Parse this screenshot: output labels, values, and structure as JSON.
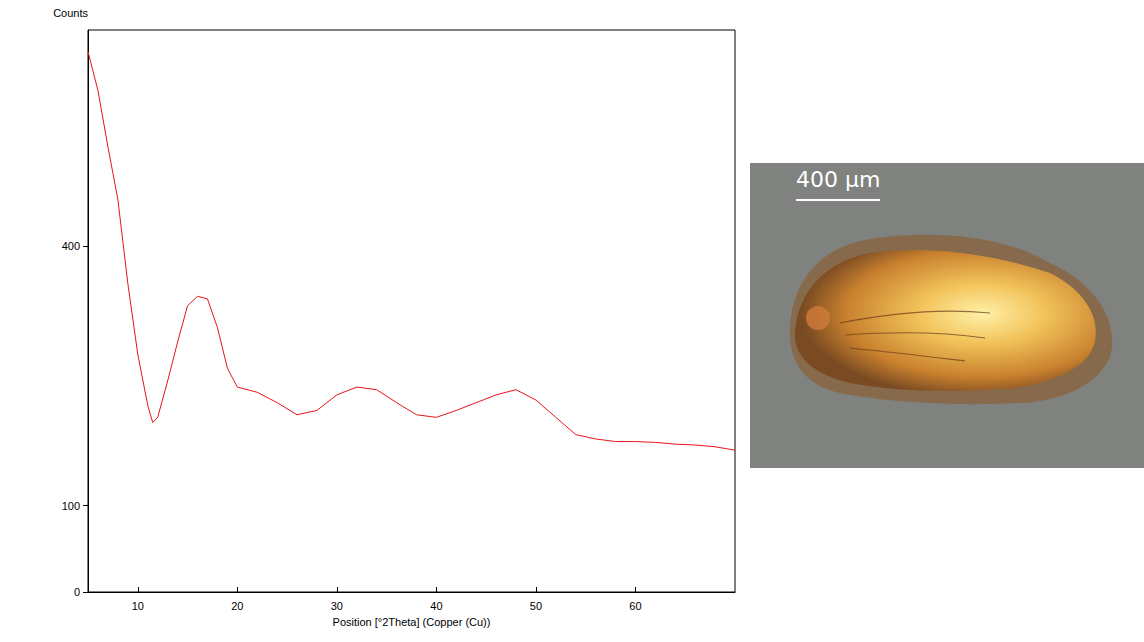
{
  "chart_data": {
    "type": "line",
    "x_label": "Position [°2Theta] (Copper (Cu))",
    "y_label": "Counts",
    "x": [
      5,
      6,
      7,
      8,
      9,
      10,
      11,
      11.5,
      12,
      13,
      14,
      15,
      16,
      17,
      18,
      19,
      20,
      22,
      24,
      26,
      28,
      30,
      32,
      34,
      36,
      38,
      40,
      42,
      44,
      46,
      48,
      50,
      52,
      54,
      56,
      58,
      60,
      62,
      64,
      66,
      68,
      70
    ],
    "series": [
      {
        "name": "Counts",
        "color": "#e8141a",
        "values": [
          625,
          580,
          515,
          454,
          357,
          275,
          216,
          196,
          202,
          244,
          289,
          331,
          342,
          339,
          306,
          259,
          237,
          231,
          219,
          205,
          210,
          228,
          237,
          234,
          219,
          205,
          202,
          210,
          219,
          228,
          234,
          222,
          202,
          182,
          177,
          174,
          174,
          173,
          171,
          170,
          168,
          164
        ]
      }
    ],
    "xlim": [
      5,
      70
    ],
    "xticks": [
      10,
      20,
      30,
      40,
      50,
      60
    ],
    "ylim": [
      0,
      650
    ],
    "yticks": [
      0,
      100,
      400
    ],
    "grid": false
  },
  "photo": {
    "scale_bar_label": "400 µm"
  }
}
